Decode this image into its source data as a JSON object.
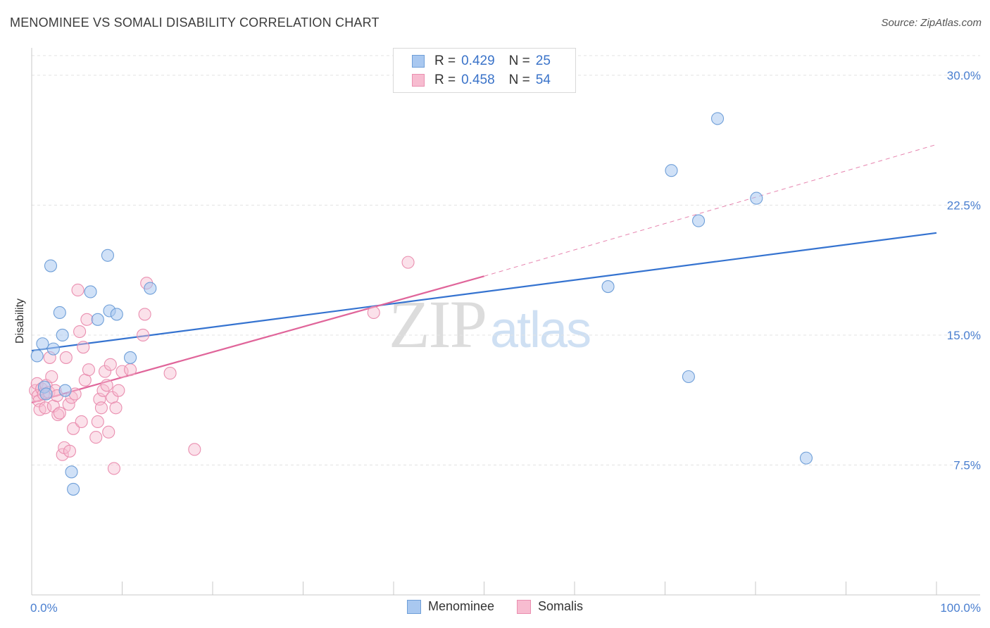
{
  "title": "MENOMINEE VS SOMALI DISABILITY CORRELATION CHART",
  "source": "Source: ZipAtlas.com",
  "watermark": {
    "zip": "ZIP",
    "atlas": "atlas"
  },
  "legend": {
    "rows": [
      {
        "r_label": "R =",
        "r_value": "0.429",
        "n_label": "N =",
        "n_value": "25"
      },
      {
        "r_label": "R =",
        "r_value": "0.458",
        "n_label": "N =",
        "n_value": "54"
      }
    ]
  },
  "colors": {
    "menominee_fill": "#a9c8f0",
    "menominee_stroke": "#6f9fd8",
    "menominee_line": "#3573d0",
    "somali_fill": "#f7bcd0",
    "somali_stroke": "#ea8fb0",
    "somali_line": "#e0659a",
    "grid": "#e3e3e3",
    "tick_text": "#4a7fd0"
  },
  "chart_data": {
    "type": "scatter",
    "title": "MENOMINEE VS SOMALI DISABILITY CORRELATION CHART",
    "xlabel": "",
    "ylabel": "Disability",
    "xlim": [
      0,
      100
    ],
    "ylim": [
      0,
      31.5
    ],
    "x_tick_labels": [
      "0.0%",
      "100.0%"
    ],
    "y_ticks": [
      7.5,
      15.0,
      22.5,
      30.0
    ],
    "y_tick_labels": [
      "7.5%",
      "15.0%",
      "22.5%",
      "30.0%"
    ],
    "grid": "horizontal dashed",
    "legend_position": "top-center",
    "series": [
      {
        "name": "Menominee",
        "R": 0.429,
        "N": 25,
        "trend": {
          "x0": 0,
          "y0": 14.1,
          "x1": 100,
          "y1": 20.9
        },
        "points": [
          [
            0.6,
            13.8
          ],
          [
            1.2,
            14.5
          ],
          [
            1.4,
            12.0
          ],
          [
            1.6,
            11.6
          ],
          [
            2.1,
            19.0
          ],
          [
            2.4,
            14.2
          ],
          [
            3.1,
            16.3
          ],
          [
            3.4,
            15.0
          ],
          [
            3.7,
            11.8
          ],
          [
            4.4,
            7.1
          ],
          [
            4.6,
            6.1
          ],
          [
            6.5,
            17.5
          ],
          [
            7.3,
            15.9
          ],
          [
            8.4,
            19.6
          ],
          [
            8.6,
            16.4
          ],
          [
            9.4,
            16.2
          ],
          [
            10.9,
            13.7
          ],
          [
            13.1,
            17.7
          ],
          [
            63.7,
            17.8
          ],
          [
            70.7,
            24.5
          ],
          [
            72.6,
            12.6
          ],
          [
            73.7,
            21.6
          ],
          [
            75.8,
            27.5
          ],
          [
            80.1,
            22.9
          ],
          [
            85.6,
            7.9
          ]
        ]
      },
      {
        "name": "Somalis",
        "R": 0.458,
        "N": 54,
        "trend": {
          "x0": 0,
          "y0": 11.1,
          "x1": 50,
          "y1": 18.4,
          "x1_dashed": 100,
          "y1_dashed": 26.0
        },
        "points": [
          [
            0.4,
            11.8
          ],
          [
            0.6,
            12.2
          ],
          [
            0.7,
            11.5
          ],
          [
            0.8,
            11.2
          ],
          [
            0.9,
            10.7
          ],
          [
            1.1,
            11.9
          ],
          [
            1.3,
            11.6
          ],
          [
            1.5,
            10.8
          ],
          [
            1.6,
            12.1
          ],
          [
            1.9,
            11.7
          ],
          [
            2.0,
            13.7
          ],
          [
            2.2,
            12.6
          ],
          [
            2.4,
            10.9
          ],
          [
            2.6,
            11.8
          ],
          [
            2.8,
            11.5
          ],
          [
            2.9,
            10.4
          ],
          [
            3.1,
            10.5
          ],
          [
            3.4,
            8.1
          ],
          [
            3.6,
            8.5
          ],
          [
            3.8,
            13.7
          ],
          [
            4.1,
            11.0
          ],
          [
            4.2,
            8.3
          ],
          [
            4.4,
            11.4
          ],
          [
            4.6,
            9.6
          ],
          [
            4.8,
            11.6
          ],
          [
            5.1,
            17.6
          ],
          [
            5.3,
            15.2
          ],
          [
            5.5,
            10.0
          ],
          [
            5.7,
            14.3
          ],
          [
            5.9,
            12.4
          ],
          [
            6.1,
            15.9
          ],
          [
            6.3,
            13.0
          ],
          [
            7.1,
            9.1
          ],
          [
            7.3,
            10.0
          ],
          [
            7.5,
            11.3
          ],
          [
            7.7,
            10.8
          ],
          [
            7.9,
            11.8
          ],
          [
            8.1,
            12.9
          ],
          [
            8.3,
            12.1
          ],
          [
            8.5,
            9.4
          ],
          [
            8.7,
            13.3
          ],
          [
            8.9,
            11.4
          ],
          [
            9.1,
            7.3
          ],
          [
            9.3,
            10.8
          ],
          [
            9.6,
            11.8
          ],
          [
            10.0,
            12.9
          ],
          [
            10.9,
            13.0
          ],
          [
            12.3,
            15.0
          ],
          [
            12.5,
            16.2
          ],
          [
            12.7,
            18.0
          ],
          [
            15.3,
            12.8
          ],
          [
            18.0,
            8.4
          ],
          [
            37.8,
            16.3
          ],
          [
            41.6,
            19.2
          ]
        ]
      }
    ]
  },
  "bottom_legend": {
    "items": [
      {
        "label": "Menominee"
      },
      {
        "label": "Somalis"
      }
    ]
  }
}
